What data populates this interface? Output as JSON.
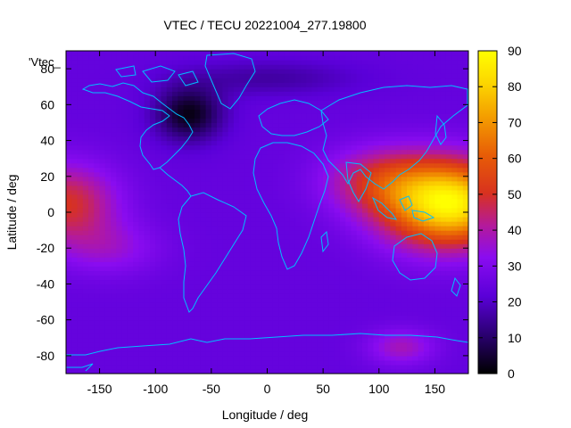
{
  "chart_data": {
    "type": "heatmap",
    "title": "VTEC / TECU 20221004_277.19800",
    "xlabel": "Longitude / deg",
    "ylabel": "Latitude / deg",
    "series_label": "'Vtec_",
    "xlim": [
      -180,
      180
    ],
    "ylim": [
      -90,
      90
    ],
    "x_ticks": [
      -150,
      -100,
      -50,
      0,
      50,
      100,
      150
    ],
    "y_ticks": [
      -80,
      -60,
      -40,
      -20,
      0,
      20,
      40,
      60,
      80
    ],
    "color_scale": {
      "min": 0,
      "max": 90,
      "ticks": [
        0,
        10,
        20,
        30,
        40,
        50,
        60,
        70,
        80,
        90
      ],
      "palette": "black-blue-purple-red-orange-yellow"
    },
    "grid": {
      "lon_step": 5,
      "lat_step": 2.5,
      "components": [
        {
          "lon": 150,
          "lat": 5,
          "amp": 44,
          "slon": 55,
          "slat": 24
        },
        {
          "lon": 100,
          "lat": 18,
          "amp": 20,
          "slon": 50,
          "slat": 18
        },
        {
          "lon": -180,
          "lat": 5,
          "amp": 26,
          "slon": 45,
          "slat": 22
        },
        {
          "lon": 180,
          "lat": 5,
          "amp": 26,
          "slon": 45,
          "slat": 22
        },
        {
          "lon": -140,
          "lat": -20,
          "amp": 10,
          "slon": 45,
          "slat": 15
        },
        {
          "lon": -70,
          "lat": 55,
          "amp": -22,
          "slon": 30,
          "slat": 15
        },
        {
          "lon": 0,
          "lat": 75,
          "amp": -8,
          "slon": 80,
          "slat": 10
        },
        {
          "lon": 120,
          "lat": -75,
          "amp": 14,
          "slon": 30,
          "slat": 10
        }
      ],
      "base": 24
    },
    "coastline_color": "#00bfff"
  }
}
